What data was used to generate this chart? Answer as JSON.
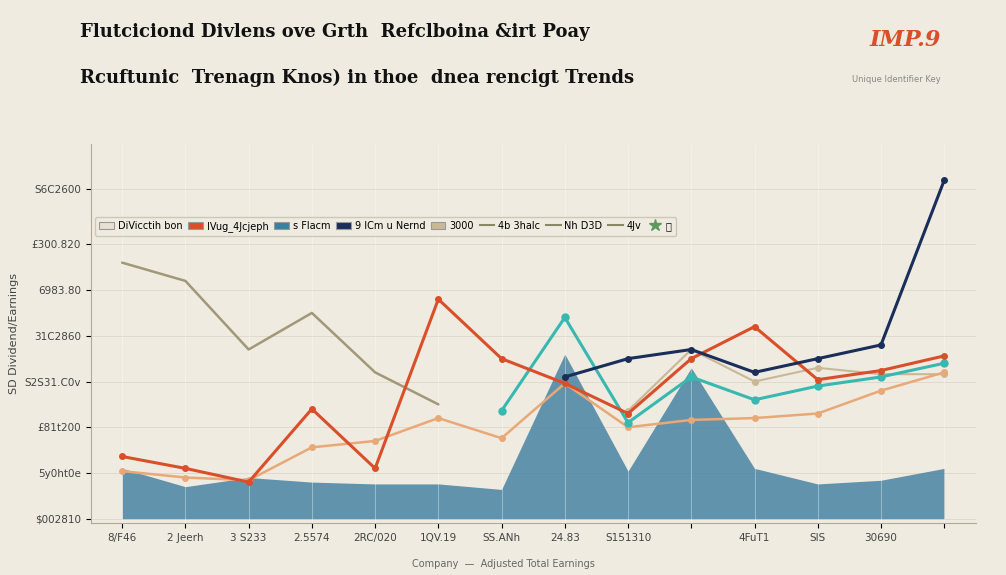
{
  "title_line1": "Flutciciond Divlens ove Grth  Refclboina &irt Poay",
  "title_line2": "Rcuftunic  Trenagn Knos) in thoe  dnea rencigt Trends",
  "title_right": "IMP.9",
  "title_right_sub": "Unique Identifier Key",
  "background_color": "#f0ebe0",
  "ylabel": "SD Dividend/Earnings",
  "xlabel_note": "Company  —  Adjusted Total Earnings",
  "x_labels": [
    "8/F46",
    "2 Jeerh",
    "3 S233",
    "2.5574",
    "2RC/020",
    "1QV.19",
    "SS.ANh",
    "24.83",
    "S151310",
    "",
    "4FuT1",
    "SIS",
    "30690",
    ""
  ],
  "yticks": [
    "$002810",
    "5y0ht0e",
    "£81t200",
    "S2S31.C0v",
    "31C2860",
    "6983.80",
    "£300.820",
    "S6C2600"
  ],
  "ytick_values": [
    0,
    50,
    100,
    150,
    200,
    250,
    300,
    360
  ],
  "ylim": [
    -5,
    410
  ],
  "n_points": 14,
  "bar_area": {
    "color": "#3d7fa0",
    "alpha": 0.8,
    "values": [
      55,
      35,
      45,
      40,
      38,
      38,
      32,
      180,
      52,
      165,
      55,
      38,
      42,
      55
    ]
  },
  "orange_line": {
    "color": "#d94f2a",
    "linewidth": 2.2,
    "values": [
      68,
      55,
      40,
      120,
      55,
      240,
      175,
      148,
      115,
      175,
      210,
      152,
      162,
      178
    ],
    "markers": true,
    "markersize": 4
  },
  "peach_line": {
    "color": "#e8a878",
    "linewidth": 1.8,
    "values": [
      52,
      45,
      42,
      78,
      85,
      110,
      88,
      148,
      100,
      108,
      110,
      115,
      140,
      160
    ],
    "markers": true,
    "markersize": 4
  },
  "teal_line": {
    "color": "#38b8b0",
    "linewidth": 2.2,
    "values": [
      null,
      null,
      null,
      null,
      null,
      null,
      118,
      220,
      105,
      155,
      130,
      145,
      155,
      170
    ],
    "markers": true,
    "markersize": 5
  },
  "navy_line": {
    "color": "#1a2e5a",
    "linewidth": 2.2,
    "values": [
      null,
      null,
      null,
      null,
      null,
      null,
      null,
      155,
      175,
      185,
      160,
      175,
      190,
      370
    ],
    "markers": true,
    "markersize": 4
  },
  "tan_line": {
    "color": "#c8b898",
    "linewidth": 1.5,
    "values": [
      null,
      null,
      null,
      null,
      null,
      null,
      null,
      null,
      118,
      185,
      150,
      165,
      158,
      158
    ],
    "markers": true,
    "markersize": 4
  },
  "grey_line": {
    "color": "#a09878",
    "linewidth": 1.8,
    "values": [
      280,
      260,
      185,
      225,
      160,
      125,
      null,
      null,
      null,
      null,
      null,
      null,
      null,
      null
    ],
    "markers": false
  }
}
